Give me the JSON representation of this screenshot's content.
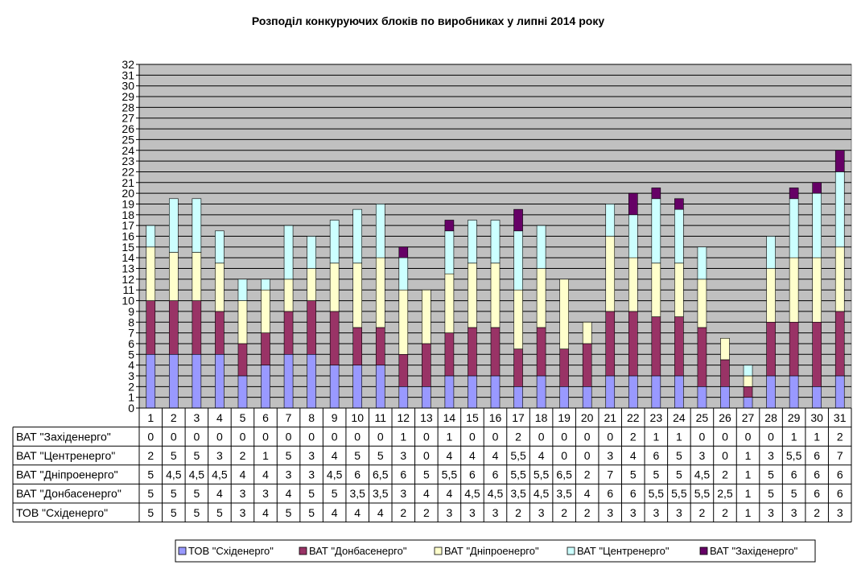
{
  "chart_data": {
    "type": "bar",
    "stacked": true,
    "title": "Розподіл конкуруючих блоків по виробниках у липні 2014 року",
    "ylim": [
      0,
      32
    ],
    "y_ticks": [
      0,
      1,
      2,
      3,
      4,
      5,
      6,
      7,
      8,
      9,
      10,
      11,
      12,
      13,
      14,
      15,
      16,
      17,
      18,
      19,
      20,
      21,
      22,
      23,
      24,
      25,
      26,
      27,
      28,
      29,
      30,
      31,
      32
    ],
    "grid": true,
    "legend_position": "bottom",
    "categories": [
      "1",
      "2",
      "3",
      "4",
      "5",
      "6",
      "7",
      "8",
      "9",
      "10",
      "11",
      "12",
      "13",
      "14",
      "15",
      "16",
      "17",
      "18",
      "19",
      "20",
      "21",
      "22",
      "23",
      "24",
      "25",
      "26",
      "27",
      "28",
      "29",
      "30",
      "31"
    ],
    "series": [
      {
        "name": "ТОВ \"Східенерго\"",
        "color": "#9999ff",
        "values": [
          5,
          5,
          5,
          5,
          3,
          4,
          5,
          5,
          4,
          4,
          4,
          2,
          2,
          3,
          3,
          3,
          2,
          3,
          2,
          2,
          3,
          3,
          3,
          3,
          2,
          2,
          1,
          3,
          3,
          2,
          3
        ],
        "labels": [
          "5",
          "5",
          "5",
          "5",
          "3",
          "4",
          "5",
          "5",
          "4",
          "4",
          "4",
          "2",
          "2",
          "3",
          "3",
          "3",
          "2",
          "3",
          "2",
          "2",
          "3",
          "3",
          "3",
          "3",
          "2",
          "2",
          "1",
          "3",
          "3",
          "2",
          "3"
        ]
      },
      {
        "name": "ВАТ \"Донбасенерго\"",
        "color": "#993366",
        "values": [
          5,
          5,
          5,
          4,
          3,
          3,
          4,
          5,
          5,
          3.5,
          3.5,
          3,
          4,
          4,
          4.5,
          4.5,
          3.5,
          4.5,
          3.5,
          4,
          6,
          6,
          5.5,
          5.5,
          5.5,
          2.5,
          1,
          5,
          5,
          6,
          6
        ],
        "labels": [
          "5",
          "5",
          "5",
          "4",
          "3",
          "3",
          "4",
          "5",
          "5",
          "3,5",
          "3,5",
          "3",
          "4",
          "4",
          "4,5",
          "4,5",
          "3,5",
          "4,5",
          "3,5",
          "4",
          "6",
          "6",
          "5,5",
          "5,5",
          "5,5",
          "2,5",
          "1",
          "5",
          "5",
          "6",
          "6"
        ]
      },
      {
        "name": "ВАТ \"Дніпроенерго\"",
        "color": "#ffffcc",
        "values": [
          5,
          4.5,
          4.5,
          4.5,
          4,
          4,
          3,
          3,
          4.5,
          6,
          6.5,
          6,
          5,
          5.5,
          6,
          6,
          5.5,
          5.5,
          6.5,
          2,
          7,
          5,
          5,
          5,
          4.5,
          2,
          1,
          5,
          6,
          6,
          6
        ],
        "labels": [
          "5",
          "4,5",
          "4,5",
          "4,5",
          "4",
          "4",
          "3",
          "3",
          "4,5",
          "6",
          "6,5",
          "6",
          "5",
          "5,5",
          "6",
          "6",
          "5,5",
          "5,5",
          "6,5",
          "2",
          "7",
          "5",
          "5",
          "5",
          "4,5",
          "2",
          "1",
          "5",
          "6",
          "6",
          "6"
        ]
      },
      {
        "name": "ВАТ \"Центренерго\"",
        "color": "#ccffff",
        "values": [
          2,
          5,
          5,
          3,
          2,
          1,
          5,
          3,
          4,
          5,
          5,
          3,
          0,
          4,
          4,
          4,
          5.5,
          4,
          0,
          0,
          3,
          4,
          6,
          5,
          3,
          0,
          1,
          3,
          5.5,
          6,
          7
        ],
        "labels": [
          "2",
          "5",
          "5",
          "3",
          "2",
          "1",
          "5",
          "3",
          "4",
          "5",
          "5",
          "3",
          "0",
          "4",
          "4",
          "4",
          "5,5",
          "4",
          "0",
          "0",
          "3",
          "4",
          "6",
          "5",
          "3",
          "0",
          "1",
          "3",
          "5,5",
          "6",
          "7"
        ]
      },
      {
        "name": "ВАТ \"Західенерго\"",
        "color": "#660066",
        "values": [
          0,
          0,
          0,
          0,
          0,
          0,
          0,
          0,
          0,
          0,
          0,
          1,
          0,
          1,
          0,
          0,
          2,
          0,
          0,
          0,
          0,
          2,
          1,
          1,
          0,
          0,
          0,
          0,
          1,
          1,
          2
        ],
        "labels": [
          "0",
          "0",
          "0",
          "0",
          "0",
          "0",
          "0",
          "0",
          "0",
          "0",
          "0",
          "1",
          "0",
          "1",
          "0",
          "0",
          "2",
          "0",
          "0",
          "0",
          "0",
          "2",
          "1",
          "1",
          "0",
          "0",
          "0",
          "0",
          "1",
          "1",
          "2"
        ]
      }
    ],
    "table_row_order": [
      4,
      3,
      2,
      1,
      0
    ]
  }
}
